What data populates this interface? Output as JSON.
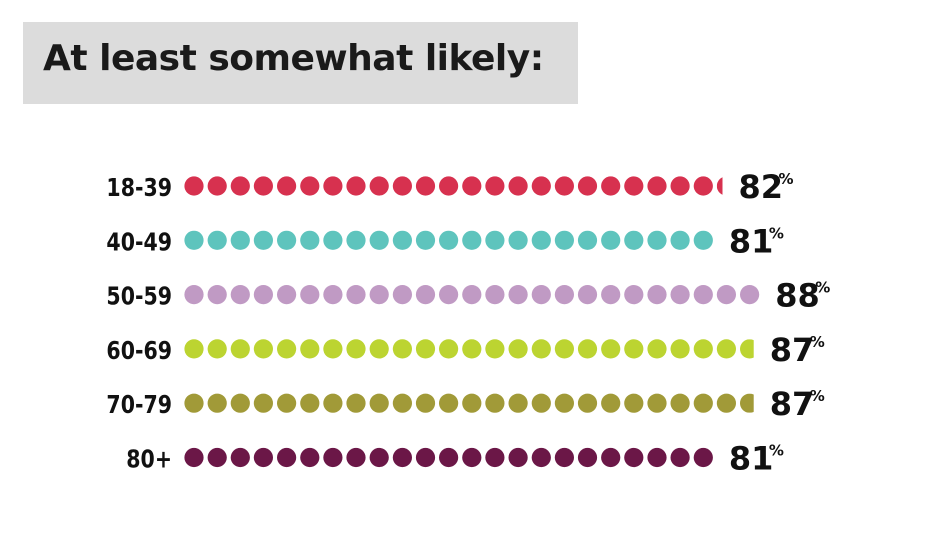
{
  "title": "At least somewhat likely:",
  "chart_data": {
    "type": "bar",
    "style": "dot-strip",
    "categories": [
      "18-39",
      "40-49",
      "50-59",
      "60-69",
      "70-79",
      "80+"
    ],
    "values": [
      82,
      81,
      88,
      87,
      87,
      81
    ],
    "value_suffix": "%",
    "colors": [
      "#d7314f",
      "#5ec4bd",
      "#c09ac4",
      "#bcd431",
      "#a19a38",
      "#6b1747"
    ]
  }
}
